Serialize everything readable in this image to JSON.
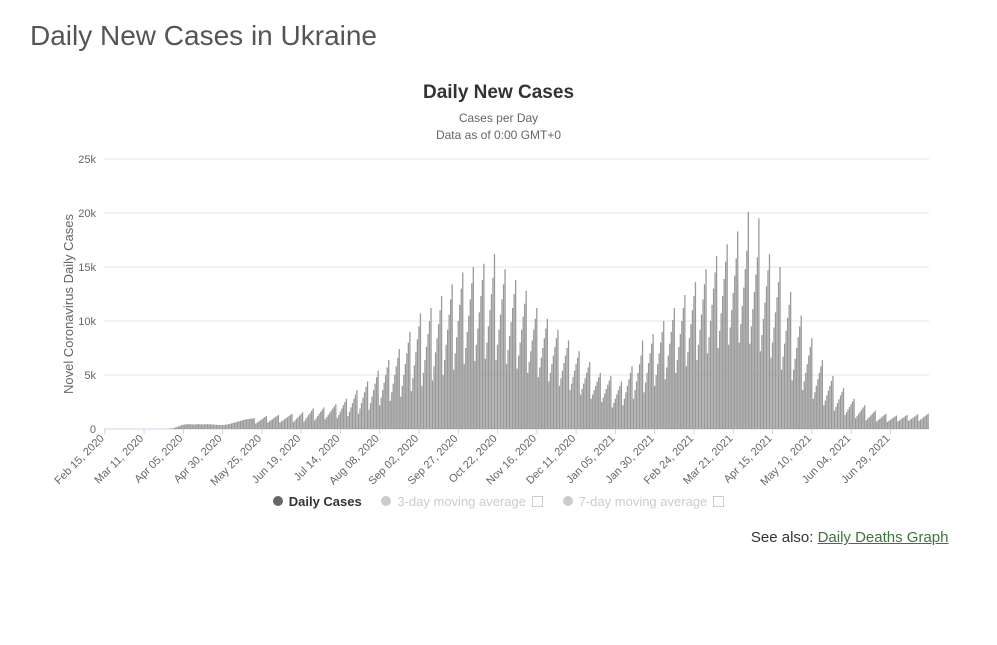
{
  "page_title": "Daily New Cases in Ukraine",
  "chart": {
    "type": "bar",
    "title": "Daily New Cases",
    "subtitle_line1": "Cases per Day",
    "subtitle_line2": "Data as of 0:00 GMT+0",
    "yaxis_title": "Novel Coronavirus Daily Cases",
    "yaxis": {
      "min": 0,
      "max": 25000,
      "step": 5000,
      "tick_suffix": "k"
    },
    "grid_color": "#e6e6e6",
    "axis_color": "#ccd6eb",
    "bar_color": "#999999",
    "background_color": "#ffffff",
    "title_fontsize": 19,
    "subtitle_fontsize": 12,
    "tick_fontsize": 11,
    "yaxis_title_fontsize": 13,
    "x_categories": [
      "Feb 15, 2020",
      "Mar 11, 2020",
      "Apr 05, 2020",
      "Apr 30, 2020",
      "May 25, 2020",
      "Jun 19, 2020",
      "Jul 14, 2020",
      "Aug 08, 2020",
      "Sep 02, 2020",
      "Sep 27, 2020",
      "Oct 22, 2020",
      "Nov 16, 2020",
      "Dec 11, 2020",
      "Jan 05, 2021",
      "Jan 30, 2021",
      "Feb 24, 2021",
      "Mar 21, 2021",
      "Apr 15, 2021",
      "May 10, 2021",
      "Jun 04, 2021",
      "Jun 29, 2021"
    ],
    "values": [
      0,
      0,
      0,
      0,
      0,
      0,
      0,
      0,
      0,
      0,
      0,
      0,
      0,
      0,
      0,
      0,
      0,
      0,
      0,
      0,
      0,
      0,
      0,
      0,
      0,
      0,
      0,
      0,
      0,
      0,
      0,
      0,
      0,
      0,
      0,
      0,
      0,
      0,
      0,
      0,
      0,
      0,
      10,
      30,
      50,
      70,
      100,
      150,
      200,
      250,
      300,
      350,
      400,
      420,
      430,
      440,
      450,
      440,
      430,
      420,
      430,
      440,
      450,
      440,
      430,
      420,
      430,
      440,
      450,
      440,
      430,
      420,
      410,
      400,
      390,
      380,
      370,
      360,
      370,
      380,
      400,
      420,
      450,
      480,
      520,
      560,
      600,
      640,
      680,
      720,
      760,
      800,
      840,
      880,
      900,
      920,
      940,
      960,
      980,
      1000,
      500,
      600,
      700,
      800,
      900,
      1000,
      1100,
      1200,
      600,
      700,
      800,
      900,
      1000,
      1100,
      1200,
      1300,
      600,
      700,
      800,
      900,
      1000,
      1100,
      1200,
      1300,
      1400,
      650,
      800,
      950,
      1100,
      1250,
      1400,
      1550,
      700,
      900,
      1100,
      1300,
      1500,
      1700,
      1900,
      800,
      1000,
      1200,
      1400,
      1600,
      1800,
      2000,
      900,
      1100,
      1300,
      1500,
      1700,
      1900,
      2100,
      2300,
      1000,
      1300,
      1600,
      1900,
      2200,
      2500,
      2800,
      1200,
      1600,
      2000,
      2400,
      2800,
      3200,
      3600,
      1400,
      1900,
      2400,
      2900,
      3400,
      3900,
      4400,
      1800,
      2400,
      3000,
      3600,
      4200,
      4800,
      5400,
      2200,
      2900,
      3600,
      4300,
      5000,
      5700,
      6400,
      2600,
      3400,
      4200,
      5000,
      5800,
      6600,
      7400,
      3000,
      4000,
      5000,
      6000,
      7000,
      8000,
      9000,
      3500,
      4700,
      5900,
      7100,
      8300,
      9500,
      10700,
      4000,
      5200,
      6400,
      7600,
      8800,
      10000,
      11200,
      4500,
      5800,
      7100,
      8400,
      9700,
      11000,
      12300,
      5000,
      6400,
      7800,
      9200,
      10600,
      12000,
      13400,
      5500,
      7000,
      8500,
      10000,
      11500,
      13000,
      14500,
      6000,
      7500,
      9000,
      10500,
      12000,
      13500,
      15000,
      6300,
      7800,
      9300,
      10800,
      12300,
      13800,
      15300,
      6500,
      8000,
      9500,
      11000,
      12500,
      14000,
      16200,
      6400,
      7800,
      9200,
      10600,
      12000,
      13400,
      14800,
      6000,
      7300,
      8600,
      9900,
      11200,
      12500,
      13800,
      5600,
      6800,
      8000,
      9200,
      10400,
      11600,
      12800,
      5200,
      6200,
      7200,
      8200,
      9200,
      10200,
      11200,
      4800,
      5700,
      6600,
      7500,
      8400,
      9300,
      10200,
      4400,
      5200,
      6000,
      6800,
      7600,
      8400,
      9200,
      4000,
      4700,
      5400,
      6100,
      6800,
      7500,
      8200,
      3600,
      4200,
      4800,
      5400,
      6000,
      6600,
      7200,
      3200,
      3700,
      4200,
      4700,
      5200,
      5700,
      6200,
      2800,
      3200,
      3600,
      4000,
      4400,
      4800,
      5200,
      2500,
      2900,
      3300,
      3700,
      4100,
      4500,
      4900,
      2000,
      2400,
      2800,
      3200,
      3600,
      4000,
      4400,
      2200,
      2800,
      3400,
      4000,
      4600,
      5200,
      5800,
      2800,
      3600,
      4400,
      5200,
      6000,
      6800,
      8200,
      3400,
      4300,
      5200,
      6100,
      7000,
      7900,
      8800,
      4000,
      5000,
      6000,
      7000,
      8000,
      9000,
      10000,
      4600,
      5700,
      6800,
      7900,
      9000,
      10100,
      11200,
      5200,
      6400,
      7600,
      8800,
      10000,
      11200,
      12400,
      5800,
      7100,
      8400,
      9700,
      11000,
      12300,
      13600,
      6400,
      7800,
      9200,
      10600,
      12000,
      13400,
      14800,
      7000,
      8500,
      10000,
      11500,
      13000,
      14500,
      16000,
      7500,
      9100,
      10700,
      12300,
      13900,
      15500,
      17100,
      7800,
      9400,
      11000,
      12600,
      14200,
      15800,
      18300,
      8000,
      9700,
      11400,
      13100,
      14800,
      16500,
      20100,
      7900,
      9500,
      11100,
      12700,
      14300,
      15900,
      19500,
      7200,
      8700,
      10200,
      11700,
      13200,
      14700,
      16200,
      6600,
      8000,
      9400,
      10800,
      12200,
      13600,
      15000,
      5500,
      6700,
      7900,
      9100,
      10300,
      11500,
      12700,
      4500,
      5500,
      6500,
      7500,
      8500,
      9500,
      10500,
      3600,
      4400,
      5200,
      6000,
      6800,
      7600,
      8400,
      2800,
      3400,
      4000,
      4600,
      5200,
      5800,
      6400,
      2200,
      2650,
      3100,
      3550,
      4000,
      4450,
      4900,
      1700,
      2050,
      2400,
      2750,
      3100,
      3450,
      3800,
      1300,
      1550,
      1800,
      2050,
      2300,
      2550,
      2800,
      1000,
      1200,
      1400,
      1600,
      1800,
      2000,
      2200,
      800,
      950,
      1100,
      1250,
      1400,
      1550,
      1700,
      700,
      820,
      940,
      1060,
      1180,
      1300,
      1420,
      650,
      750,
      850,
      950,
      1050,
      1150,
      1250,
      700,
      800,
      900,
      1000,
      1100,
      1200,
      1300,
      750,
      850,
      950,
      1050,
      1150,
      1250,
      1350,
      760,
      870,
      980,
      1090,
      1200,
      1310,
      1420
    ]
  },
  "legend": {
    "items": [
      {
        "label": "Daily Cases",
        "active": true
      },
      {
        "label": "3-day moving average",
        "active": false,
        "checkbox": true
      },
      {
        "label": "7-day moving average",
        "active": false,
        "checkbox": true
      }
    ]
  },
  "see_also": {
    "prefix": "See also: ",
    "link_text": "Daily Deaths Graph"
  }
}
